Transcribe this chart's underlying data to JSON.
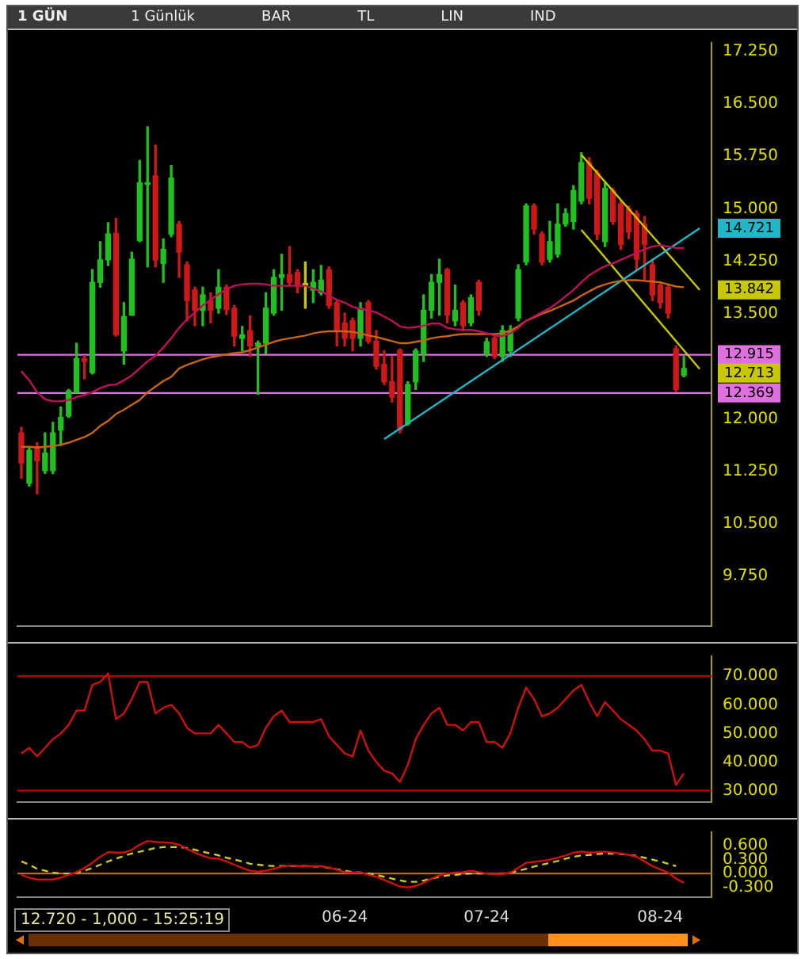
{
  "chart_data": [
    {
      "type": "candlestick",
      "title": "1 GÜN",
      "categories": [
        null,
        null,
        null,
        null,
        null,
        null,
        null,
        null,
        null,
        null,
        null,
        null,
        null,
        null,
        null,
        null,
        null,
        null,
        null,
        null,
        null,
        null,
        null,
        null,
        null,
        null,
        null,
        null,
        null,
        null,
        null,
        null,
        null,
        null,
        null,
        null,
        null,
        null,
        null,
        null,
        null,
        null,
        null,
        null,
        null,
        null,
        null,
        null,
        null,
        null,
        null,
        null,
        null,
        null,
        null,
        null,
        null,
        null,
        null,
        null,
        null,
        null,
        null,
        null,
        null,
        null,
        null,
        null,
        null,
        null,
        null,
        null,
        null,
        null,
        null,
        null,
        null,
        null,
        null,
        null,
        null,
        null,
        null,
        null,
        null,
        null,
        null,
        null
      ],
      "series": [
        {
          "type": "candlestick",
          "ohlc": [
            [
              11.8,
              11.88,
              11.15,
              11.37
            ],
            [
              11.08,
              11.59,
              11.04,
              11.55
            ],
            [
              11.6,
              11.66,
              10.93,
              11.4
            ],
            [
              11.26,
              11.8,
              11.22,
              11.51
            ],
            [
              11.26,
              11.95,
              11.22,
              11.8
            ],
            [
              11.84,
              12.17,
              11.62,
              12.02
            ],
            [
              12.04,
              12.42,
              12.02,
              12.4
            ],
            [
              12.38,
              13.08,
              12.38,
              12.86
            ],
            [
              12.86,
              12.9,
              12.57,
              12.82
            ],
            [
              12.66,
              14.13,
              12.64,
              13.95
            ],
            [
              13.95,
              14.53,
              13.88,
              14.27
            ],
            [
              14.27,
              14.8,
              14.19,
              14.64
            ],
            [
              14.65,
              14.86,
              13.18,
              13.2
            ],
            [
              12.97,
              13.66,
              12.78,
              13.46
            ],
            [
              13.48,
              14.38,
              13.48,
              14.28
            ],
            [
              14.55,
              15.69,
              14.53,
              15.37
            ],
            [
              15.35,
              16.17,
              14.17,
              15.37
            ],
            [
              15.47,
              15.91,
              14.17,
              14.27
            ],
            [
              14.22,
              14.57,
              13.95,
              14.42
            ],
            [
              14.64,
              15.62,
              14.6,
              15.44
            ],
            [
              14.78,
              14.82,
              14.02,
              14.38
            ],
            [
              14.2,
              14.24,
              13.4,
              13.69
            ],
            [
              13.84,
              13.88,
              13.33,
              13.55
            ],
            [
              13.55,
              13.88,
              13.33,
              13.77
            ],
            [
              13.69,
              13.8,
              13.37,
              13.55
            ],
            [
              13.58,
              14.13,
              13.51,
              13.88
            ],
            [
              13.88,
              13.91,
              13.49,
              13.56
            ],
            [
              13.58,
              13.62,
              13.04,
              13.18
            ],
            [
              13.15,
              13.32,
              12.97,
              13.2
            ],
            [
              13.26,
              13.47,
              12.89,
              13.04
            ],
            [
              13.04,
              13.11,
              12.35,
              13.08
            ],
            [
              13.08,
              13.8,
              12.93,
              13.58
            ],
            [
              13.51,
              14.13,
              13.48,
              14.02
            ],
            [
              14.02,
              14.35,
              13.55,
              14.06
            ],
            [
              14.06,
              14.46,
              13.91,
              13.95
            ],
            [
              14.09,
              14.13,
              13.8,
              13.91
            ],
            [
              13.91,
              14.24,
              13.58,
              13.91
            ],
            [
              13.84,
              14.13,
              13.66,
              13.95
            ],
            [
              13.8,
              14.19,
              13.77,
              13.98
            ],
            [
              14.13,
              14.17,
              13.58,
              13.62
            ],
            [
              13.66,
              13.69,
              13.04,
              13.26
            ],
            [
              13.37,
              13.51,
              13.04,
              13.15
            ],
            [
              13.4,
              13.44,
              12.97,
              13.15
            ],
            [
              13.15,
              13.66,
              13.04,
              13.58
            ],
            [
              13.66,
              13.69,
              13.08,
              13.11
            ],
            [
              13.11,
              13.26,
              12.71,
              12.75
            ],
            [
              12.78,
              12.97,
              12.49,
              12.53
            ],
            [
              12.53,
              12.89,
              12.24,
              12.31
            ],
            [
              12.98,
              13.0,
              11.8,
              11.84
            ],
            [
              11.93,
              12.53,
              11.91,
              12.49
            ],
            [
              12.53,
              13.0,
              12.42,
              12.97
            ],
            [
              12.93,
              13.77,
              12.82,
              13.55
            ],
            [
              13.55,
              14.06,
              13.44,
              13.95
            ],
            [
              13.95,
              14.28,
              13.48,
              14.06
            ],
            [
              14.13,
              14.15,
              13.37,
              13.48
            ],
            [
              13.4,
              13.91,
              13.33,
              13.55
            ],
            [
              13.66,
              13.69,
              13.26,
              13.33
            ],
            [
              13.37,
              13.77,
              13.33,
              13.73
            ],
            [
              13.95,
              13.98,
              13.48,
              13.55
            ],
            [
              12.93,
              13.15,
              12.89,
              13.1
            ],
            [
              13.15,
              13.18,
              12.86,
              12.89
            ],
            [
              12.89,
              13.33,
              12.82,
              13.26
            ],
            [
              12.97,
              13.33,
              12.89,
              13.26
            ],
            [
              13.44,
              14.2,
              13.4,
              14.13
            ],
            [
              14.24,
              15.07,
              14.2,
              15.04
            ],
            [
              15.04,
              15.07,
              14.64,
              14.71
            ],
            [
              14.64,
              14.67,
              14.2,
              14.24
            ],
            [
              14.28,
              14.82,
              14.24,
              14.53
            ],
            [
              14.35,
              15.07,
              14.31,
              14.78
            ],
            [
              14.78,
              15.0,
              14.75,
              14.93
            ],
            [
              14.82,
              15.33,
              14.71,
              15.26
            ],
            [
              15.11,
              15.8,
              15.07,
              15.66
            ],
            [
              15.66,
              15.73,
              15.07,
              15.15
            ],
            [
              15.51,
              15.55,
              14.56,
              14.64
            ],
            [
              14.53,
              15.37,
              14.46,
              15.29
            ],
            [
              15.26,
              15.29,
              14.78,
              14.82
            ],
            [
              15.07,
              15.11,
              14.42,
              14.49
            ],
            [
              15.0,
              15.04,
              14.57,
              14.67
            ],
            [
              14.93,
              14.97,
              14.13,
              14.28
            ],
            [
              14.78,
              14.89,
              13.98,
              14.49
            ],
            [
              14.2,
              14.28,
              13.69,
              13.77
            ],
            [
              13.91,
              13.95,
              13.58,
              13.66
            ],
            [
              13.88,
              13.91,
              13.44,
              13.51
            ],
            [
              13.0,
              13.04,
              12.39,
              12.42
            ],
            [
              12.62,
              12.89,
              12.6,
              12.72
            ],
            null,
            null,
            null
          ],
          "colors": [
            "#d01818",
            "#20c020",
            "#d01818",
            "#20c020",
            "#20c020",
            "#20c020",
            "#20c020",
            "#20c020",
            "#d01818",
            "#20c020",
            "#20c020",
            "#20c020",
            "#d01818",
            "#20c020",
            "#20c020",
            "#20c020",
            "#20c020",
            "#d01818",
            "#20c020",
            "#20c020",
            "#d01818",
            "#d01818",
            "#d01818",
            "#20c020",
            "#d01818",
            "#20c020",
            "#d01818",
            "#d01818",
            "#20c020",
            "#d01818",
            "#20c020",
            "#20c020",
            "#20c020",
            "#20c020",
            "#d01818",
            "#d01818",
            "#c8c800",
            "#20c020",
            "#20c020",
            "#d01818",
            "#d01818",
            "#d01818",
            "#d01818",
            "#20c020",
            "#d01818",
            "#d01818",
            "#d01818",
            "#d01818",
            "#d01818",
            "#20c020",
            "#20c020",
            "#20c020",
            "#20c020",
            "#20c020",
            "#d01818",
            "#20c020",
            "#d01818",
            "#20c020",
            "#d01818",
            "#20c020",
            "#d01818",
            "#20c020",
            "#20c020",
            "#20c020",
            "#20c020",
            "#d01818",
            "#d01818",
            "#20c020",
            "#20c020",
            "#20c020",
            "#20c020",
            "#20c020",
            "#d01818",
            "#d01818",
            "#20c020",
            "#d01818",
            "#d01818",
            "#d01818",
            "#d01818",
            "#d01818",
            "#d01818",
            "#d01818",
            "#d01818",
            "#d01818",
            "#20c020",
            null,
            null,
            null
          ]
        },
        {
          "type": "line",
          "color": "#c0105a",
          "values": [
            12.68,
            12.55,
            12.38,
            12.28,
            12.25,
            12.25,
            12.27,
            12.31,
            12.34,
            12.38,
            12.44,
            12.48,
            12.49,
            12.55,
            12.62,
            12.72,
            12.82,
            12.9,
            13.02,
            13.15,
            13.3,
            13.42,
            13.52,
            13.62,
            13.7,
            13.78,
            13.85,
            13.9,
            13.92,
            13.93,
            13.93,
            13.92,
            13.9,
            13.9,
            13.9,
            13.9,
            13.9,
            13.86,
            13.82,
            13.76,
            13.7,
            13.66,
            13.6,
            13.57,
            13.55,
            13.52,
            13.46,
            13.4,
            13.32,
            13.3,
            13.31,
            13.33,
            13.36,
            13.36,
            13.3,
            13.28,
            13.27,
            13.27,
            13.25,
            13.22,
            13.19,
            13.18,
            13.22,
            13.3,
            13.4,
            13.46,
            13.52,
            13.58,
            13.66,
            13.75,
            13.84,
            13.95,
            14.05,
            14.12,
            14.18,
            14.22,
            14.27,
            14.32,
            14.37,
            14.42,
            14.46,
            14.48,
            14.46,
            14.44,
            14.44,
            null,
            null,
            null
          ]
        },
        {
          "type": "line",
          "color": "#c86414",
          "values": [
            11.6,
            11.6,
            11.59,
            11.6,
            11.61,
            11.63,
            11.66,
            11.7,
            11.74,
            11.8,
            11.9,
            11.97,
            12.07,
            12.13,
            12.2,
            12.27,
            12.38,
            12.46,
            12.54,
            12.6,
            12.72,
            12.77,
            12.81,
            12.85,
            12.88,
            12.9,
            12.92,
            12.94,
            12.95,
            12.98,
            13.02,
            13.06,
            13.1,
            13.13,
            13.15,
            13.17,
            13.19,
            13.22,
            13.24,
            13.25,
            13.25,
            13.25,
            13.24,
            13.22,
            13.19,
            13.17,
            13.14,
            13.11,
            13.08,
            13.08,
            13.1,
            13.12,
            13.15,
            13.17,
            13.18,
            13.2,
            13.21,
            13.21,
            13.21,
            13.21,
            13.21,
            13.22,
            13.26,
            13.32,
            13.4,
            13.45,
            13.5,
            13.54,
            13.59,
            13.64,
            13.69,
            13.76,
            13.82,
            13.88,
            13.92,
            13.95,
            13.97,
            13.98,
            13.98,
            13.97,
            13.96,
            13.95,
            13.92,
            13.89,
            13.88,
            null,
            null,
            null
          ]
        },
        {
          "type": "line",
          "color": "#20b8c8",
          "values": [
            null,
            null,
            null,
            null,
            null,
            null,
            null,
            null,
            null,
            null,
            null,
            null,
            null,
            null,
            null,
            null,
            null,
            null,
            null,
            null,
            null,
            null,
            null,
            null,
            null,
            null,
            null,
            null,
            null,
            null,
            null,
            null,
            null,
            null,
            null,
            null,
            null,
            null,
            null,
            null,
            null,
            null,
            null,
            null,
            null,
            null,
            11.71,
            null,
            null,
            null,
            null,
            null,
            null,
            null,
            null,
            null,
            null,
            null,
            null,
            null,
            null,
            null,
            null,
            null,
            null,
            null,
            null,
            null,
            null,
            null,
            null,
            null,
            null,
            null,
            null,
            null,
            null,
            null,
            null,
            null,
            null,
            null,
            null,
            null,
            null,
            null,
            14.721,
            null
          ],
          "value_labels": [
            null,
            null,
            null,
            null,
            null,
            null,
            null,
            null,
            null,
            null,
            null,
            null,
            null,
            null,
            null,
            null,
            null,
            null,
            null,
            null,
            null,
            null,
            null,
            null,
            null,
            null,
            null,
            null,
            null,
            null,
            null,
            null,
            null,
            null,
            null,
            null,
            null,
            null,
            null,
            null,
            null,
            null,
            null,
            null,
            null,
            null,
            null,
            null,
            null,
            null,
            null,
            null,
            null,
            null,
            null,
            null,
            null,
            null,
            null,
            null,
            null,
            null,
            null,
            null,
            null,
            null,
            null,
            null,
            null,
            null,
            null,
            null,
            null,
            null,
            null,
            null,
            null,
            null,
            null,
            null,
            null,
            null,
            null,
            null,
            null,
            null,
            "14.721",
            null
          ]
        },
        {
          "type": "line",
          "color": "#c8c800",
          "values": [
            null,
            null,
            null,
            null,
            null,
            null,
            null,
            null,
            null,
            null,
            null,
            null,
            null,
            null,
            null,
            null,
            null,
            null,
            null,
            null,
            null,
            null,
            null,
            null,
            null,
            null,
            null,
            null,
            null,
            null,
            null,
            null,
            null,
            null,
            null,
            null,
            null,
            null,
            null,
            null,
            null,
            null,
            null,
            null,
            null,
            null,
            null,
            null,
            null,
            null,
            null,
            null,
            null,
            null,
            null,
            null,
            null,
            null,
            null,
            null,
            null,
            null,
            null,
            null,
            null,
            null,
            null,
            null,
            null,
            null,
            null,
            15.77,
            null,
            null,
            null,
            null,
            null,
            null,
            null,
            null,
            null,
            null,
            null,
            null,
            null,
            null,
            13.842,
            null
          ],
          "value_labels": [
            null,
            null,
            null,
            null,
            null,
            null,
            null,
            null,
            null,
            null,
            null,
            null,
            null,
            null,
            null,
            null,
            null,
            null,
            null,
            null,
            null,
            null,
            null,
            null,
            null,
            null,
            null,
            null,
            null,
            null,
            null,
            null,
            null,
            null,
            null,
            null,
            null,
            null,
            null,
            null,
            null,
            null,
            null,
            null,
            null,
            null,
            null,
            null,
            null,
            null,
            null,
            null,
            null,
            null,
            null,
            null,
            null,
            null,
            null,
            null,
            null,
            null,
            null,
            null,
            null,
            null,
            null,
            null,
            null,
            null,
            null,
            null,
            null,
            null,
            null,
            null,
            null,
            null,
            null,
            null,
            null,
            null,
            null,
            null,
            null,
            null,
            "13.842",
            null
          ]
        },
        {
          "type": "line",
          "color": "#c8c800",
          "values": [
            null,
            null,
            null,
            null,
            null,
            null,
            null,
            null,
            null,
            null,
            null,
            null,
            null,
            null,
            null,
            null,
            null,
            null,
            null,
            null,
            null,
            null,
            null,
            null,
            null,
            null,
            null,
            null,
            null,
            null,
            null,
            null,
            null,
            null,
            null,
            null,
            null,
            null,
            null,
            null,
            null,
            null,
            null,
            null,
            null,
            null,
            null,
            null,
            null,
            null,
            null,
            null,
            null,
            null,
            null,
            null,
            null,
            null,
            null,
            null,
            null,
            null,
            null,
            null,
            null,
            null,
            null,
            null,
            null,
            null,
            null,
            14.7,
            null,
            null,
            null,
            null,
            null,
            null,
            null,
            null,
            null,
            null,
            null,
            null,
            null,
            null,
            12.713,
            null
          ],
          "value_labels": [
            null,
            null,
            null,
            null,
            null,
            null,
            null,
            null,
            null,
            null,
            null,
            null,
            null,
            null,
            null,
            null,
            null,
            null,
            null,
            null,
            null,
            null,
            null,
            null,
            null,
            null,
            null,
            null,
            null,
            null,
            null,
            null,
            null,
            null,
            null,
            null,
            null,
            null,
            null,
            null,
            null,
            null,
            null,
            null,
            null,
            null,
            null,
            null,
            null,
            null,
            null,
            null,
            null,
            null,
            null,
            null,
            null,
            null,
            null,
            null,
            null,
            null,
            null,
            null,
            null,
            null,
            null,
            null,
            null,
            null,
            null,
            null,
            null,
            null,
            null,
            null,
            null,
            null,
            null,
            null,
            null,
            null,
            null,
            null,
            null,
            null,
            "12.713",
            null
          ]
        }
      ],
      "ylim": [
        9.04,
        17.37
      ],
      "yticks": [
        {
          "value": 9.75,
          "label": "9.750"
        },
        {
          "value": 10.5,
          "label": "10.500"
        },
        {
          "value": 11.25,
          "label": "11.250"
        },
        {
          "value": 12,
          "label": "12.000"
        },
        {
          "value": 13.5,
          "label": "13.500"
        },
        {
          "value": 14.25,
          "label": "14.250"
        },
        {
          "value": 15,
          "label": "15.000"
        },
        {
          "value": 15.75,
          "label": "15.750"
        },
        {
          "value": 16.5,
          "label": "16.500"
        },
        {
          "value": 17.25,
          "label": "17.250"
        }
      ],
      "ref_lines": [
        {
          "axis": "y",
          "value": 12.915,
          "label": "12.915",
          "color": "#e070e0"
        },
        {
          "axis": "y",
          "value": 12.369,
          "label": "12.369",
          "color": "#e070e0"
        }
      ],
      "annotations": [
        "1 Günlük",
        "BAR",
        "TL",
        "LIN",
        "IND"
      ],
      "grid": false,
      "legend": false,
      "marker": "none",
      "tick_labels": "y"
    },
    {
      "type": "line",
      "categories": [
        null,
        null,
        null,
        null,
        null,
        null,
        null,
        null,
        null,
        null,
        null,
        null,
        null,
        null,
        null,
        null,
        null,
        null,
        null,
        null,
        null,
        null,
        null,
        null,
        null,
        null,
        null,
        null,
        null,
        null,
        null,
        null,
        null,
        null,
        null,
        null,
        null,
        null,
        null,
        null,
        null,
        null,
        null,
        null,
        null,
        null,
        null,
        null,
        null,
        null,
        null,
        null,
        null,
        null,
        null,
        null,
        null,
        null,
        null,
        null,
        null,
        null,
        null,
        null,
        null,
        null,
        null,
        null,
        null,
        null,
        null,
        null,
        null,
        null,
        null,
        null,
        null,
        null,
        null,
        null,
        null,
        null,
        null,
        null,
        null,
        null,
        null,
        null
      ],
      "series": [
        {
          "color": "#d01010",
          "values": [
            43,
            45,
            42,
            45,
            48,
            50,
            53,
            58,
            58,
            67,
            68,
            71,
            55,
            57,
            62,
            68,
            68,
            57,
            59,
            60,
            57,
            52,
            50,
            50,
            50,
            53,
            50,
            47,
            47,
            45,
            46,
            52,
            56,
            58,
            54,
            54,
            54,
            54,
            55,
            49,
            46,
            43,
            42,
            51,
            44,
            40,
            37,
            36,
            33,
            39,
            48,
            53,
            57,
            59,
            53,
            53,
            51,
            54,
            54,
            47,
            47,
            45,
            50,
            59,
            66,
            62,
            56,
            57,
            59,
            62,
            65,
            67,
            61,
            56,
            61,
            58,
            55,
            53,
            51,
            48,
            44,
            44,
            43,
            32,
            36,
            null,
            null,
            null
          ]
        }
      ],
      "ylim": [
        26,
        77
      ],
      "yticks": [
        {
          "value": 30,
          "label": "30.000"
        },
        {
          "value": 40,
          "label": "40.000"
        },
        {
          "value": 50,
          "label": "50.000"
        },
        {
          "value": 60,
          "label": "60.000"
        },
        {
          "value": 70,
          "label": "70.000"
        }
      ],
      "ref_lines": [
        {
          "axis": "y",
          "value": 70,
          "color": "#b00000"
        },
        {
          "axis": "y",
          "value": 30,
          "color": "#b00000"
        }
      ],
      "grid": false,
      "legend": false,
      "marker": "none",
      "tick_labels": "y"
    },
    {
      "type": "line",
      "categories": [
        null,
        null,
        null,
        null,
        null,
        null,
        null,
        null,
        null,
        null,
        null,
        null,
        null,
        null,
        null,
        null,
        null,
        null,
        null,
        null,
        null,
        null,
        null,
        null,
        null,
        null,
        null,
        null,
        null,
        null,
        null,
        null,
        null,
        null,
        null,
        null,
        null,
        null,
        null,
        null,
        null,
        "06-24",
        null,
        null,
        null,
        null,
        null,
        null,
        null,
        null,
        null,
        null,
        null,
        null,
        null,
        null,
        null,
        null,
        null,
        "07-24",
        null,
        null,
        null,
        null,
        null,
        null,
        null,
        null,
        null,
        null,
        null,
        null,
        null,
        null,
        null,
        null,
        null,
        null,
        null,
        null,
        null,
        "08-24",
        null,
        null,
        null,
        null,
        null,
        null
      ],
      "series": [
        {
          "color": "#d01010",
          "values": [
            -0.03,
            -0.09,
            -0.13,
            -0.13,
            -0.13,
            -0.09,
            -0.03,
            0.03,
            0.12,
            0.23,
            0.36,
            0.46,
            0.45,
            0.45,
            0.51,
            0.62,
            0.7,
            0.68,
            0.67,
            0.66,
            0.62,
            0.53,
            0.45,
            0.38,
            0.33,
            0.32,
            0.26,
            0.19,
            0.12,
            0.06,
            0.04,
            0.06,
            0.1,
            0.15,
            0.17,
            0.16,
            0.16,
            0.16,
            0.16,
            0.13,
            0.08,
            0.03,
            0.02,
            0.02,
            -0.03,
            -0.07,
            -0.14,
            -0.21,
            -0.28,
            -0.3,
            -0.27,
            -0.2,
            -0.11,
            -0.04,
            0.0,
            0.02,
            0.03,
            0.06,
            0.03,
            0.0,
            -0.01,
            -0.01,
            0.02,
            0.12,
            0.23,
            0.25,
            0.27,
            0.3,
            0.34,
            0.39,
            0.45,
            0.47,
            0.45,
            0.46,
            0.47,
            0.45,
            0.43,
            0.4,
            0.36,
            0.26,
            0.16,
            0.09,
            0.02,
            -0.11,
            -0.2,
            null,
            null,
            null
          ]
        },
        {
          "color": "#c8c832",
          "line_style": "dashed",
          "values": [
            0.26,
            0.19,
            0.1,
            0.06,
            0.02,
            0.0,
            0.0,
            0.02,
            0.06,
            0.12,
            0.19,
            0.26,
            0.32,
            0.38,
            0.43,
            0.47,
            0.51,
            0.55,
            0.57,
            0.57,
            0.57,
            0.55,
            0.51,
            0.47,
            0.43,
            0.39,
            0.34,
            0.3,
            0.26,
            0.21,
            0.19,
            0.17,
            0.16,
            0.16,
            0.16,
            0.16,
            0.16,
            0.15,
            0.15,
            0.12,
            0.09,
            0.06,
            0.03,
            0.02,
            0.0,
            -0.03,
            -0.07,
            -0.11,
            -0.15,
            -0.18,
            -0.18,
            -0.15,
            -0.11,
            -0.07,
            -0.04,
            -0.03,
            -0.01,
            0.0,
            0.0,
            0.0,
            0.0,
            0.0,
            0.02,
            0.06,
            0.1,
            0.15,
            0.19,
            0.23,
            0.27,
            0.32,
            0.36,
            0.39,
            0.4,
            0.42,
            0.43,
            0.43,
            0.42,
            0.4,
            0.38,
            0.34,
            0.3,
            0.26,
            0.21,
            0.16,
            null,
            null,
            null,
            null
          ]
        }
      ],
      "ylim": [
        -0.51,
        0.89
      ],
      "yticks": [
        {
          "value": -0.3,
          "label": "-0.300"
        },
        {
          "value": 0,
          "label": "0.000"
        },
        {
          "value": 0.3,
          "label": "0.300"
        },
        {
          "value": 0.6,
          "label": "0.600"
        }
      ],
      "ref_lines": [
        {
          "axis": "y",
          "value": 0,
          "color": "#d06000"
        }
      ],
      "annotations": [
        "12.720 - 1,000 - 15:25:19"
      ],
      "grid": false,
      "legend": false,
      "marker": "none"
    }
  ]
}
